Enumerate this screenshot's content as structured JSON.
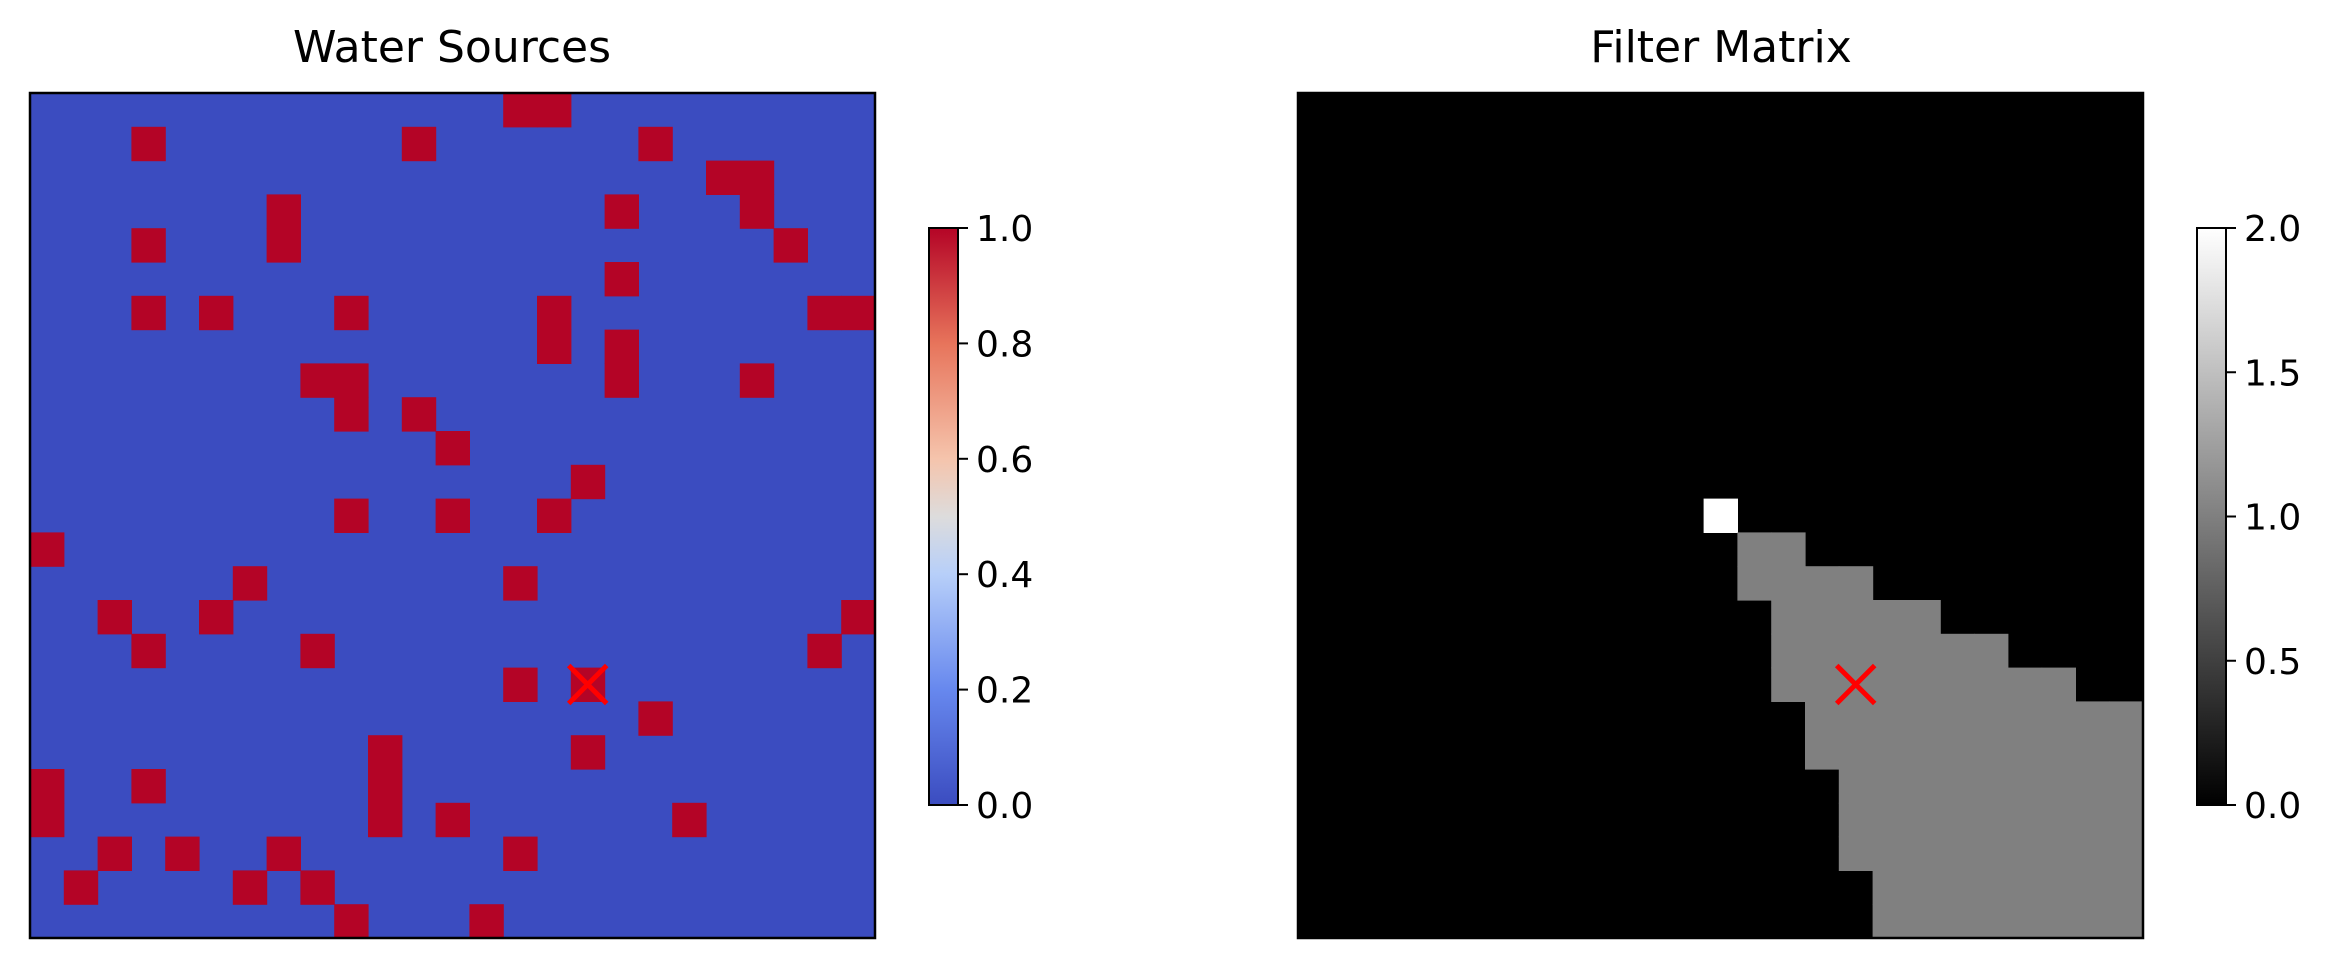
{
  "chart_data": [
    {
      "type": "heatmap",
      "title": "Water Sources",
      "grid_size": [
        25,
        25
      ],
      "colormap": "coolwarm",
      "colorbar": {
        "min": 0.0,
        "max": 1.0,
        "ticks": [
          "0.0",
          "0.2",
          "0.4",
          "0.6",
          "0.8",
          "1.0"
        ]
      },
      "cells_value_1": [
        [
          0,
          14
        ],
        [
          0,
          15
        ],
        [
          1,
          3
        ],
        [
          1,
          11
        ],
        [
          1,
          18
        ],
        [
          2,
          20
        ],
        [
          2,
          21
        ],
        [
          3,
          7
        ],
        [
          3,
          17
        ],
        [
          3,
          21
        ],
        [
          4,
          3
        ],
        [
          4,
          7
        ],
        [
          4,
          22
        ],
        [
          5,
          17
        ],
        [
          6,
          3
        ],
        [
          6,
          5
        ],
        [
          6,
          9
        ],
        [
          6,
          15
        ],
        [
          6,
          23
        ],
        [
          6,
          24
        ],
        [
          7,
          15
        ],
        [
          7,
          17
        ],
        [
          8,
          8
        ],
        [
          8,
          9
        ],
        [
          8,
          17
        ],
        [
          8,
          21
        ],
        [
          9,
          9
        ],
        [
          9,
          11
        ],
        [
          10,
          12
        ],
        [
          11,
          16
        ],
        [
          12,
          9
        ],
        [
          12,
          12
        ],
        [
          12,
          15
        ],
        [
          13,
          0
        ],
        [
          14,
          6
        ],
        [
          14,
          14
        ],
        [
          15,
          2
        ],
        [
          15,
          5
        ],
        [
          15,
          24
        ],
        [
          16,
          3
        ],
        [
          16,
          8
        ],
        [
          16,
          23
        ],
        [
          17,
          14
        ],
        [
          17,
          16
        ],
        [
          18,
          18
        ],
        [
          19,
          10
        ],
        [
          19,
          16
        ],
        [
          20,
          0
        ],
        [
          20,
          3
        ],
        [
          20,
          10
        ],
        [
          21,
          0
        ],
        [
          21,
          10
        ],
        [
          21,
          12
        ],
        [
          21,
          19
        ],
        [
          22,
          2
        ],
        [
          22,
          4
        ],
        [
          22,
          7
        ],
        [
          22,
          14
        ],
        [
          23,
          1
        ],
        [
          23,
          6
        ],
        [
          23,
          8
        ],
        [
          24,
          9
        ],
        [
          24,
          13
        ]
      ],
      "marker": {
        "symbol": "x",
        "color": "#ff0000",
        "row": 17,
        "col": 16
      }
    },
    {
      "type": "heatmap",
      "title": "Filter Matrix",
      "grid_size": [
        25,
        25
      ],
      "colormap": "gray",
      "colorbar": {
        "min": 0.0,
        "max": 2.0,
        "ticks": [
          "0.0",
          "0.5",
          "1.0",
          "1.5",
          "2.0"
        ]
      },
      "cells_value_2": [
        [
          12,
          12
        ]
      ],
      "row_ranges_value_1": [
        {
          "row": 13,
          "col_start": 13,
          "col_end": 14
        },
        {
          "row": 14,
          "col_start": 13,
          "col_end": 16
        },
        {
          "row": 15,
          "col_start": 14,
          "col_end": 18
        },
        {
          "row": 16,
          "col_start": 14,
          "col_end": 20
        },
        {
          "row": 17,
          "col_start": 14,
          "col_end": 22
        },
        {
          "row": 18,
          "col_start": 15,
          "col_end": 24
        },
        {
          "row": 19,
          "col_start": 15,
          "col_end": 24
        },
        {
          "row": 20,
          "col_start": 16,
          "col_end": 24
        },
        {
          "row": 21,
          "col_start": 16,
          "col_end": 24
        },
        {
          "row": 22,
          "col_start": 16,
          "col_end": 24
        },
        {
          "row": 23,
          "col_start": 17,
          "col_end": 24
        },
        {
          "row": 24,
          "col_start": 17,
          "col_end": 24
        }
      ],
      "marker": {
        "symbol": "x",
        "color": "#ff0000",
        "row": 17,
        "col": 16
      }
    }
  ]
}
